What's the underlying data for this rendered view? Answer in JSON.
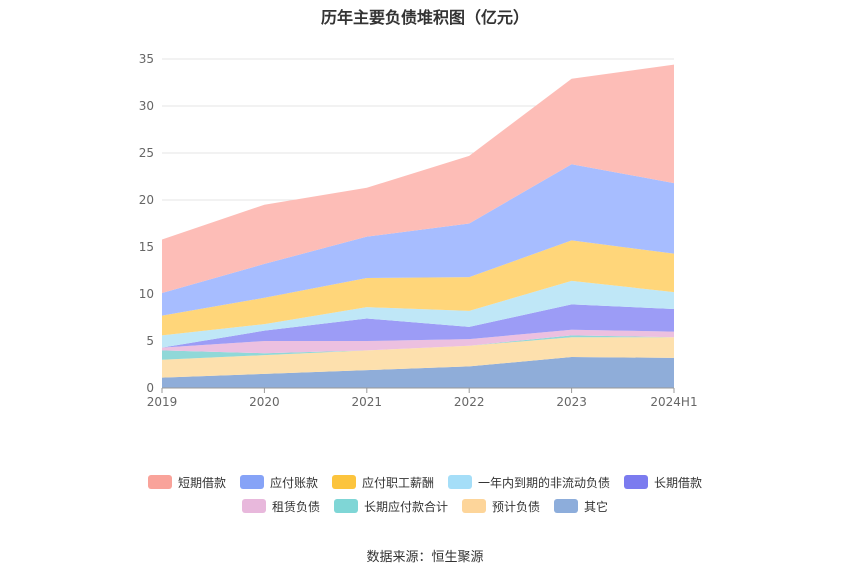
{
  "page": {
    "title": "历年主要负债堆积图（亿元）",
    "source": "数据来源：恒生聚源"
  },
  "chart_data": {
    "type": "area",
    "stacked": true,
    "title": "历年主要负债堆积图（亿元）",
    "xlabel": "",
    "ylabel": "",
    "categories": [
      "2019",
      "2020",
      "2021",
      "2022",
      "2023",
      "2024H1"
    ],
    "ylim": [
      0,
      35
    ],
    "yticks": [
      0,
      5,
      10,
      15,
      20,
      25,
      30,
      35
    ],
    "grid": true,
    "legend_position": "bottom",
    "series": [
      {
        "name": "其它",
        "color": "#8fadd9",
        "values": [
          1.1,
          1.5,
          1.9,
          2.3,
          3.3,
          3.2
        ]
      },
      {
        "name": "预计负债",
        "color": "#fde0ad",
        "values": [
          1.9,
          2.0,
          2.1,
          2.2,
          2.1,
          2.2
        ]
      },
      {
        "name": "长期应付款合计",
        "color": "#90d8d8",
        "values": [
          1.0,
          0.2,
          0.0,
          0.0,
          0.2,
          0.0
        ]
      },
      {
        "name": "租赁负债",
        "color": "#ecc0e0",
        "values": [
          0.3,
          1.3,
          1.0,
          0.7,
          0.6,
          0.6
        ]
      },
      {
        "name": "长期借款",
        "color": "#9c9cf6",
        "values": [
          0.0,
          1.1,
          2.4,
          1.3,
          2.7,
          2.4
        ]
      },
      {
        "name": "一年内到期的非流动负债",
        "color": "#bfe7f7",
        "values": [
          1.3,
          0.7,
          1.2,
          1.7,
          2.5,
          1.8
        ]
      },
      {
        "name": "应付职工薪酬",
        "color": "#ffd67a",
        "values": [
          2.1,
          2.8,
          3.1,
          3.6,
          4.3,
          4.1
        ]
      },
      {
        "name": "应付账款",
        "color": "#a7bdff",
        "values": [
          2.4,
          3.6,
          4.4,
          5.7,
          8.1,
          7.5
        ]
      },
      {
        "name": "短期借款",
        "color": "#fdbdb7",
        "values": [
          5.7,
          6.3,
          5.2,
          7.2,
          9.1,
          12.6
        ]
      }
    ]
  },
  "legend": [
    {
      "name": "短期借款",
      "color": "#f9a39a"
    },
    {
      "name": "应付账款",
      "color": "#86a3f7"
    },
    {
      "name": "应付职工薪酬",
      "color": "#fcc43d"
    },
    {
      "name": "一年内到期的非流动负债",
      "color": "#a5def8"
    },
    {
      "name": "长期借款",
      "color": "#7b7bef"
    },
    {
      "name": "租赁负债",
      "color": "#e8b8dc"
    },
    {
      "name": "长期应付款合计",
      "color": "#7fd6d6"
    },
    {
      "name": "预计负债",
      "color": "#fdd59a"
    },
    {
      "name": "其它",
      "color": "#8daddb"
    }
  ]
}
